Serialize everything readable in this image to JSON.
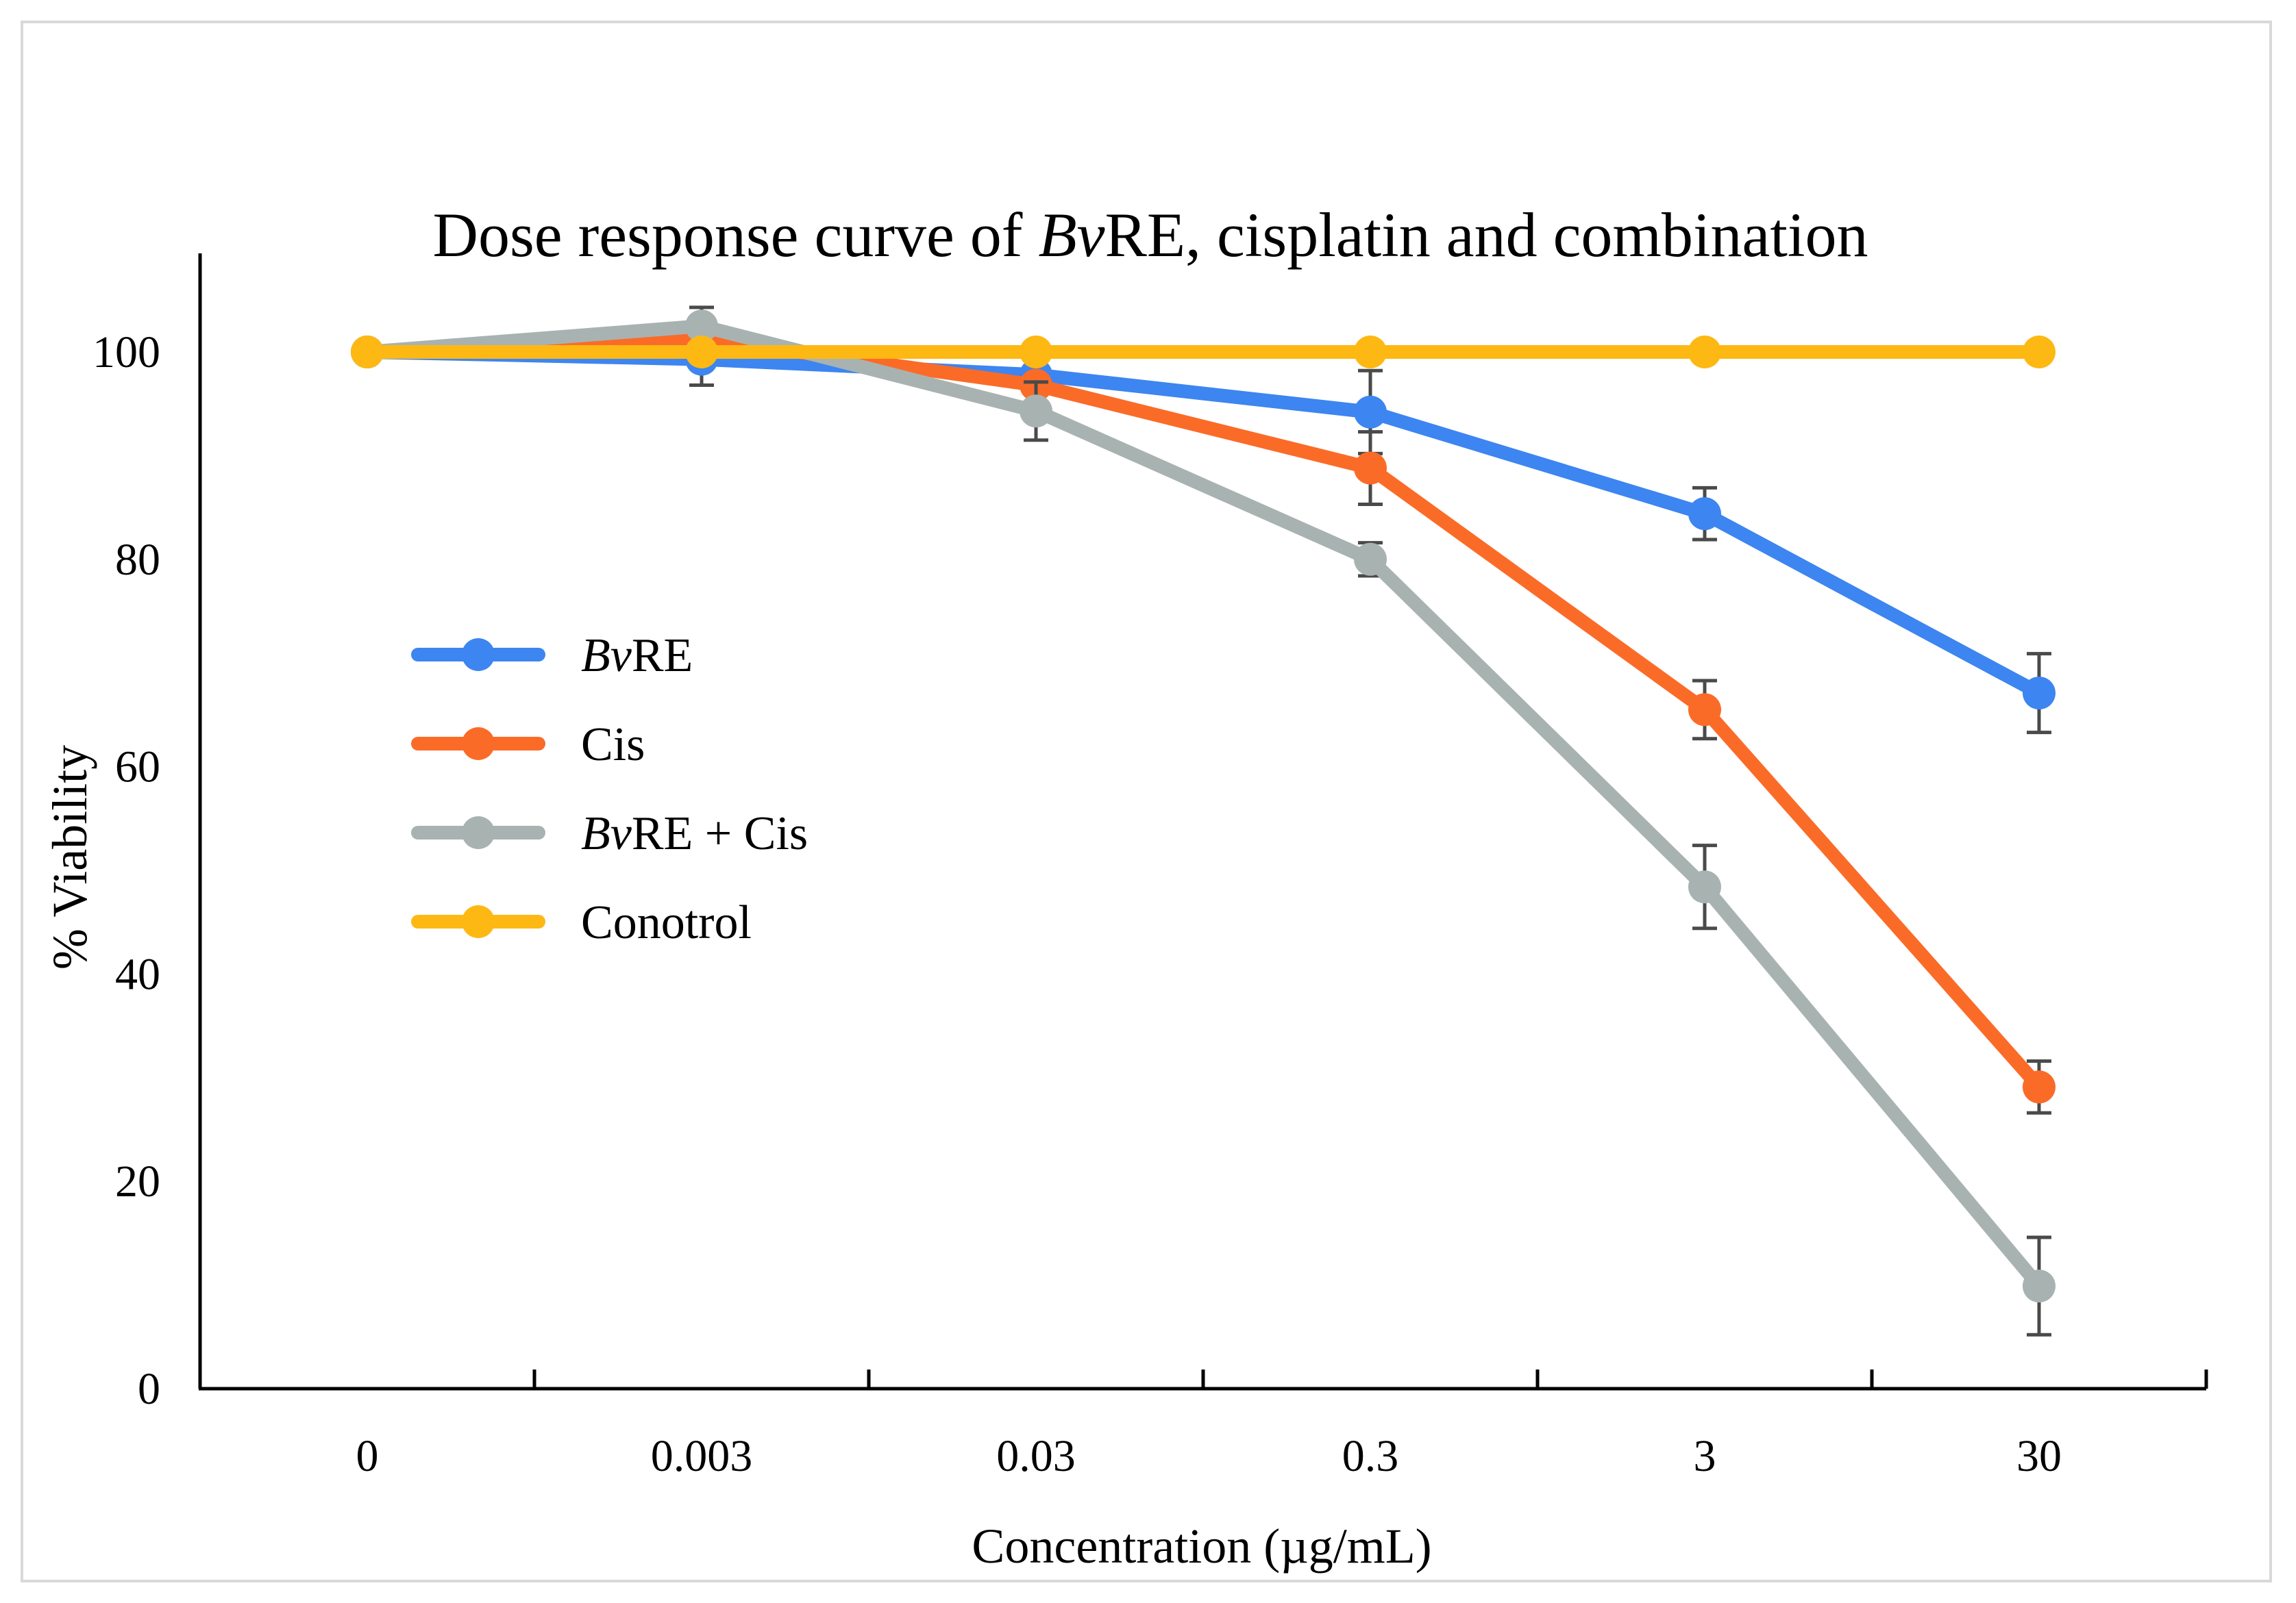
{
  "chart_data": {
    "type": "line",
    "title": {
      "before": "Dose response curve of ",
      "italic": "Bv",
      "after": "RE, cisplatin and combination"
    },
    "xlabel": "Concentration (µg/mL)",
    "ylabel": "% Viability",
    "categories": [
      "0",
      "0.003",
      "0.03",
      "0.3",
      "3",
      "30"
    ],
    "ylim": [
      0,
      110
    ],
    "yticks": [
      0,
      20,
      40,
      60,
      80,
      100
    ],
    "grid": false,
    "legend_position": "center-left",
    "series": [
      {
        "name": "BvRE",
        "label_italic": "Bv",
        "label_rest": "RE",
        "color": "#3d85f0",
        "values": [
          100,
          99.3,
          97.8,
          94.2,
          84.4,
          67.1
        ],
        "errors": [
          0,
          2.5,
          0.8,
          4.0,
          2.5,
          3.8
        ]
      },
      {
        "name": "Cis",
        "label_italic": "",
        "label_rest": "Cis",
        "color": "#fb6b28",
        "values": [
          100,
          101.3,
          96.8,
          88.8,
          65.5,
          29.1
        ],
        "errors": [
          0,
          1.0,
          0.8,
          3.5,
          2.8,
          2.5
        ]
      },
      {
        "name": "BvRE + Cis",
        "label_italic": "Bv",
        "label_rest": "RE + Cis",
        "color": "#a8b3b1",
        "values": [
          100,
          102.5,
          94.3,
          80.0,
          48.4,
          9.9
        ],
        "errors": [
          0,
          1.8,
          2.8,
          1.6,
          4.0,
          4.7
        ]
      },
      {
        "name": "Conotrol",
        "label_italic": "",
        "label_rest": "Conotrol",
        "color": "#fdb813",
        "values": [
          100,
          100,
          100,
          100,
          100,
          100
        ],
        "errors": [
          0,
          0,
          0,
          0,
          0,
          0
        ]
      }
    ],
    "error_bar_color": "#4a4a4a",
    "axis_color": "#000000"
  }
}
